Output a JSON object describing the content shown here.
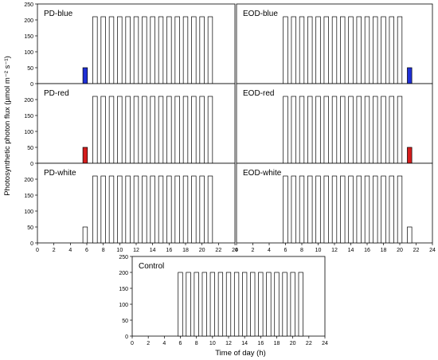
{
  "figure": {
    "ylabel": "Photosynthetic photon flux (µmol m⁻² s⁻¹)",
    "xlabel": "Time of day (h)"
  },
  "chart_data": [
    {
      "type": "bar",
      "title": "PD-blue",
      "xlim": [
        0,
        24
      ],
      "ylim": [
        0,
        250
      ],
      "yticks": [
        0,
        50,
        100,
        150,
        200,
        250
      ],
      "xticks": [],
      "bars": [
        {
          "x": 5.8,
          "value": 50,
          "color": "#1f2fd6"
        },
        {
          "x": 7,
          "value": 210
        },
        {
          "x": 8,
          "value": 210
        },
        {
          "x": 9,
          "value": 210
        },
        {
          "x": 10,
          "value": 210
        },
        {
          "x": 11,
          "value": 210
        },
        {
          "x": 12,
          "value": 210
        },
        {
          "x": 13,
          "value": 210
        },
        {
          "x": 14,
          "value": 210
        },
        {
          "x": 15,
          "value": 210
        },
        {
          "x": 16,
          "value": 210
        },
        {
          "x": 17,
          "value": 210
        },
        {
          "x": 18,
          "value": 210
        },
        {
          "x": 19,
          "value": 210
        },
        {
          "x": 20,
          "value": 210
        },
        {
          "x": 21,
          "value": 210
        }
      ]
    },
    {
      "type": "bar",
      "title": "EOD-blue",
      "xlim": [
        0,
        24
      ],
      "ylim": [
        0,
        250
      ],
      "yticks": [],
      "xticks": [],
      "bars": [
        {
          "x": 6,
          "value": 210
        },
        {
          "x": 7,
          "value": 210
        },
        {
          "x": 8,
          "value": 210
        },
        {
          "x": 9,
          "value": 210
        },
        {
          "x": 10,
          "value": 210
        },
        {
          "x": 11,
          "value": 210
        },
        {
          "x": 12,
          "value": 210
        },
        {
          "x": 13,
          "value": 210
        },
        {
          "x": 14,
          "value": 210
        },
        {
          "x": 15,
          "value": 210
        },
        {
          "x": 16,
          "value": 210
        },
        {
          "x": 17,
          "value": 210
        },
        {
          "x": 18,
          "value": 210
        },
        {
          "x": 19,
          "value": 210
        },
        {
          "x": 20,
          "value": 210
        },
        {
          "x": 21.2,
          "value": 50,
          "color": "#1f2fd6"
        }
      ]
    },
    {
      "type": "bar",
      "title": "PD-red",
      "xlim": [
        0,
        24
      ],
      "ylim": [
        0,
        250
      ],
      "yticks": [
        0,
        50,
        100,
        150,
        200
      ],
      "xticks": [],
      "bars": [
        {
          "x": 5.8,
          "value": 50,
          "color": "#d41c1c"
        },
        {
          "x": 7,
          "value": 210
        },
        {
          "x": 8,
          "value": 210
        },
        {
          "x": 9,
          "value": 210
        },
        {
          "x": 10,
          "value": 210
        },
        {
          "x": 11,
          "value": 210
        },
        {
          "x": 12,
          "value": 210
        },
        {
          "x": 13,
          "value": 210
        },
        {
          "x": 14,
          "value": 210
        },
        {
          "x": 15,
          "value": 210
        },
        {
          "x": 16,
          "value": 210
        },
        {
          "x": 17,
          "value": 210
        },
        {
          "x": 18,
          "value": 210
        },
        {
          "x": 19,
          "value": 210
        },
        {
          "x": 20,
          "value": 210
        },
        {
          "x": 21,
          "value": 210
        }
      ]
    },
    {
      "type": "bar",
      "title": "EOD-red",
      "xlim": [
        0,
        24
      ],
      "ylim": [
        0,
        250
      ],
      "yticks": [],
      "xticks": [],
      "bars": [
        {
          "x": 6,
          "value": 210
        },
        {
          "x": 7,
          "value": 210
        },
        {
          "x": 8,
          "value": 210
        },
        {
          "x": 9,
          "value": 210
        },
        {
          "x": 10,
          "value": 210
        },
        {
          "x": 11,
          "value": 210
        },
        {
          "x": 12,
          "value": 210
        },
        {
          "x": 13,
          "value": 210
        },
        {
          "x": 14,
          "value": 210
        },
        {
          "x": 15,
          "value": 210
        },
        {
          "x": 16,
          "value": 210
        },
        {
          "x": 17,
          "value": 210
        },
        {
          "x": 18,
          "value": 210
        },
        {
          "x": 19,
          "value": 210
        },
        {
          "x": 20,
          "value": 210
        },
        {
          "x": 21.2,
          "value": 50,
          "color": "#d41c1c"
        }
      ]
    },
    {
      "type": "bar",
      "title": "PD-white",
      "xlim": [
        0,
        24
      ],
      "ylim": [
        0,
        250
      ],
      "yticks": [
        0,
        50,
        100,
        150,
        200
      ],
      "xticks": [
        0,
        2,
        4,
        6,
        8,
        10,
        12,
        14,
        16,
        18,
        20,
        22,
        24
      ],
      "bars": [
        {
          "x": 5.8,
          "value": 50,
          "color": "#ffffff"
        },
        {
          "x": 7,
          "value": 210
        },
        {
          "x": 8,
          "value": 210
        },
        {
          "x": 9,
          "value": 210
        },
        {
          "x": 10,
          "value": 210
        },
        {
          "x": 11,
          "value": 210
        },
        {
          "x": 12,
          "value": 210
        },
        {
          "x": 13,
          "value": 210
        },
        {
          "x": 14,
          "value": 210
        },
        {
          "x": 15,
          "value": 210
        },
        {
          "x": 16,
          "value": 210
        },
        {
          "x": 17,
          "value": 210
        },
        {
          "x": 18,
          "value": 210
        },
        {
          "x": 19,
          "value": 210
        },
        {
          "x": 20,
          "value": 210
        },
        {
          "x": 21,
          "value": 210
        }
      ]
    },
    {
      "type": "bar",
      "title": "EOD-white",
      "xlim": [
        0,
        24
      ],
      "ylim": [
        0,
        250
      ],
      "yticks": [],
      "xticks": [
        0,
        2,
        4,
        6,
        8,
        10,
        12,
        14,
        16,
        18,
        20,
        22,
        24
      ],
      "bars": [
        {
          "x": 6,
          "value": 210
        },
        {
          "x": 7,
          "value": 210
        },
        {
          "x": 8,
          "value": 210
        },
        {
          "x": 9,
          "value": 210
        },
        {
          "x": 10,
          "value": 210
        },
        {
          "x": 11,
          "value": 210
        },
        {
          "x": 12,
          "value": 210
        },
        {
          "x": 13,
          "value": 210
        },
        {
          "x": 14,
          "value": 210
        },
        {
          "x": 15,
          "value": 210
        },
        {
          "x": 16,
          "value": 210
        },
        {
          "x": 17,
          "value": 210
        },
        {
          "x": 18,
          "value": 210
        },
        {
          "x": 19,
          "value": 210
        },
        {
          "x": 20,
          "value": 210
        },
        {
          "x": 21.2,
          "value": 50,
          "color": "#ffffff"
        }
      ]
    },
    {
      "type": "bar",
      "title": "Control",
      "xlim": [
        0,
        24
      ],
      "ylim": [
        0,
        250
      ],
      "yticks": [
        0,
        50,
        100,
        150,
        200,
        250
      ],
      "xticks": [
        0,
        2,
        4,
        6,
        8,
        10,
        12,
        14,
        16,
        18,
        20,
        22,
        24
      ],
      "bars": [
        {
          "x": 6,
          "value": 200
        },
        {
          "x": 7,
          "value": 200
        },
        {
          "x": 8,
          "value": 200
        },
        {
          "x": 9,
          "value": 200
        },
        {
          "x": 10,
          "value": 200
        },
        {
          "x": 11,
          "value": 200
        },
        {
          "x": 12,
          "value": 200
        },
        {
          "x": 13,
          "value": 200
        },
        {
          "x": 14,
          "value": 200
        },
        {
          "x": 15,
          "value": 200
        },
        {
          "x": 16,
          "value": 200
        },
        {
          "x": 17,
          "value": 200
        },
        {
          "x": 18,
          "value": 200
        },
        {
          "x": 19,
          "value": 200
        },
        {
          "x": 20,
          "value": 200
        },
        {
          "x": 21,
          "value": 200
        }
      ]
    }
  ]
}
